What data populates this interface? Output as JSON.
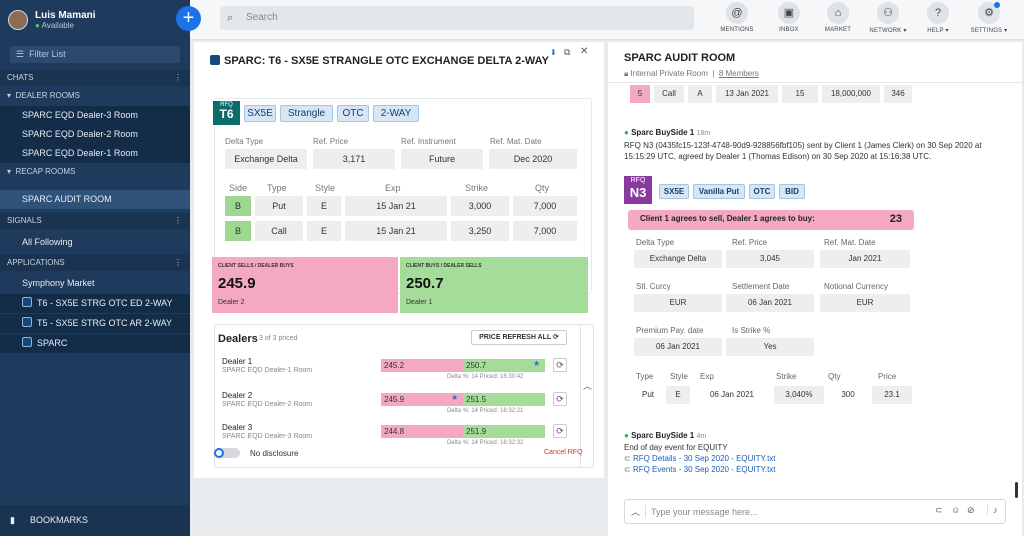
{
  "user": {
    "name": "Luis Mamani",
    "status": "Available"
  },
  "sidebar": {
    "filter_placeholder": "Filter List",
    "chats_label": "CHATS",
    "dealer_rooms_label": "DEALER ROOMS",
    "dealer_rooms": [
      "SPARC EQD Dealer-3 Room",
      "SPARC EQD Dealer-2 Room",
      "SPARC EQD Dealer-1 Room"
    ],
    "recap_label": "RECAP ROOMS",
    "audit_room": "SPARC AUDIT ROOM",
    "signals_label": "SIGNALS",
    "all_following": "All Following",
    "applications_label": "APPLICATIONS",
    "apps": [
      "Symphony Market",
      "T6 - SX5E STRG OTC ED 2-WAY",
      "T5 - SX5E STRG OTC AR 2-WAY",
      "SPARC"
    ],
    "bookmarks": "BOOKMARKS"
  },
  "topbar": {
    "search_placeholder": "Search",
    "buttons": [
      {
        "label": "MENTIONS",
        "icon": "mentions-icon"
      },
      {
        "label": "INBOX",
        "icon": "inbox-icon"
      },
      {
        "label": "MARKET",
        "icon": "market-icon"
      },
      {
        "label": "NETWORK ▾",
        "icon": "network-icon"
      },
      {
        "label": "HELP ▾",
        "icon": "help-icon"
      },
      {
        "label": "SETTINGS ▾",
        "icon": "settings-icon"
      }
    ]
  },
  "rfq": {
    "title": "SPARC: T6 - SX5E STRANGLE OTC EXCHANGE DELTA 2-WAY",
    "tag_small": "RFQ",
    "tag_big": "T6",
    "chips": [
      "SX5E",
      "Strangle",
      "OTC",
      "2-WAY"
    ],
    "header_labels": [
      "Delta Type",
      "Ref. Price",
      "Ref. Instrument",
      "Ref. Mat. Date"
    ],
    "header_values": [
      "Exchange Delta",
      "3,171",
      "Future",
      "Dec 2020"
    ],
    "leg_headers": [
      "Side",
      "Type",
      "Style",
      "Exp",
      "Strike",
      "Qty"
    ],
    "legs": [
      [
        "B",
        "Put",
        "E",
        "15 Jan 21",
        "3,000",
        "7,000"
      ],
      [
        "B",
        "Call",
        "E",
        "15 Jan 21",
        "3,250",
        "7,000"
      ]
    ],
    "sell_box": {
      "title": "CLIENT SELLS / DEALER BUYS",
      "price": "245.9",
      "dealer": "Dealer 2"
    },
    "buy_box": {
      "title": "CLIENT BUYS / DEALER SELLS",
      "price": "250.7",
      "dealer": "Dealer 1"
    },
    "dealers_title": "Dealers",
    "dealers_count": "3 of 3 priced",
    "price_refresh": "PRICE REFRESH ALL",
    "dealers": [
      {
        "name": "Dealer 1",
        "room": "SPARC EQD Dealer-1 Room",
        "bid": "245.2",
        "ask": "250.7",
        "delta": "Delta %: 14 Priced: 16:30:42"
      },
      {
        "name": "Dealer 2",
        "room": "SPARC EQD Dealer-2 Room",
        "bid": "245.9",
        "ask": "251.5",
        "delta": "Delta %: 14 Priced: 16:32:21"
      },
      {
        "name": "Dealer 3",
        "room": "SPARC EQD Dealer-3 Room",
        "bid": "244.8",
        "ask": "251.9",
        "delta": "Delta %: 14 Priced: 16:32:32"
      }
    ],
    "no_disclosure": "No disclosure",
    "cancel": "Cancel RFQ"
  },
  "audit": {
    "title": "SPARC AUDIT ROOM",
    "subtitle": "Internal Private Room",
    "members": "8 Members",
    "prev_row": [
      "5",
      "Call",
      "A",
      "13 Jan 2021",
      "15",
      "18,000,000",
      "346"
    ],
    "msg1": {
      "sender": "Sparc BuySide 1",
      "time": "18m",
      "text": "RFQ N3 (0435fc15-123f-4748-90d9-928856fbf105) sent by Client 1 (James Clerk) on 30 Sep 2020 at 15:15:29 UTC, agreed by Dealer 1 (Thomas Edison) on 30 Sep 2020 at 15:16:38 UTC."
    },
    "n3": {
      "tag_small": "RFQ",
      "tag_big": "N3",
      "chips": [
        "SX5E",
        "Vanilla Put",
        "OTC",
        "BID"
      ],
      "agree_text": "Client 1 agrees to sell, Dealer 1 agrees to buy:",
      "agree_value": "23",
      "rows": [
        [
          [
            "Delta Type",
            "Exchange Delta"
          ],
          [
            "Ref. Price",
            "3,045"
          ],
          [
            "Ref. Mat. Date",
            "Jan 2021"
          ]
        ],
        [
          [
            "Stl. Curcy",
            "EUR"
          ],
          [
            "Settlement Date",
            "06 Jan 2021"
          ],
          [
            "Notional Currency",
            "EUR"
          ]
        ],
        [
          [
            "Premium Pay. date",
            "06 Jan 2021"
          ],
          [
            "Is Strike %",
            "Yes"
          ]
        ]
      ],
      "leg_headers": [
        "Type",
        "Style",
        "Exp",
        "Strike",
        "Qty",
        "Price"
      ],
      "leg": [
        "Put",
        "E",
        "06 Jan 2021",
        "3,040%",
        "300",
        "23.1"
      ]
    },
    "msg2": {
      "sender": "Sparc BuySide 1",
      "time": "4m",
      "text": "End of day event for EQUITY",
      "links": [
        "RFQ Details - 30 Sep 2020 - EQUITY.txt",
        "RFQ Events - 30 Sep 2020 - EQUITY.txt"
      ]
    },
    "compose_placeholder": "Type your message here..."
  },
  "colors": {
    "sidebar": "#1e3a5c",
    "accent": "#1b73e8",
    "pink": "#f4a9c0",
    "green": "#a6dc9a"
  }
}
